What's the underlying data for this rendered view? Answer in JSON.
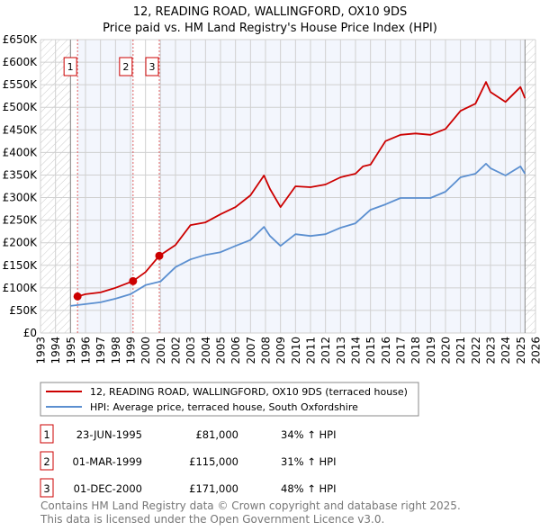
{
  "chart_data": {
    "type": "line",
    "title": "12, READING ROAD, WALLINGFORD, OX10 9DS",
    "subtitle": "Price paid vs. HM Land Registry's House Price Index (HPI)",
    "xlim": [
      1993,
      2026
    ],
    "ylim": [
      0,
      650000
    ],
    "x_ticks": [
      "1993",
      "1994",
      "1995",
      "1996",
      "1997",
      "1998",
      "1999",
      "2000",
      "2001",
      "2002",
      "2003",
      "2004",
      "2005",
      "2006",
      "2007",
      "2008",
      "2009",
      "2010",
      "2011",
      "2012",
      "2013",
      "2014",
      "2015",
      "2016",
      "2017",
      "2018",
      "2019",
      "2020",
      "2021",
      "2022",
      "2023",
      "2024",
      "2025",
      "2026"
    ],
    "y_ticks": [
      {
        "v": 0,
        "label": "£0"
      },
      {
        "v": 50000,
        "label": "£50K"
      },
      {
        "v": 100000,
        "label": "£100K"
      },
      {
        "v": 150000,
        "label": "£150K"
      },
      {
        "v": 200000,
        "label": "£200K"
      },
      {
        "v": 250000,
        "label": "£250K"
      },
      {
        "v": 300000,
        "label": "£300K"
      },
      {
        "v": 350000,
        "label": "£350K"
      },
      {
        "v": 400000,
        "label": "£400K"
      },
      {
        "v": 450000,
        "label": "£450K"
      },
      {
        "v": 500000,
        "label": "£500K"
      },
      {
        "v": 550000,
        "label": "£550K"
      },
      {
        "v": 600000,
        "label": "£600K"
      },
      {
        "v": 650000,
        "label": "£650K"
      }
    ],
    "grid": true,
    "data_range": [
      1995.0,
      2025.3
    ],
    "series": [
      {
        "name": "12, READING ROAD, WALLINGFORD, OX10 9DS (terraced house)",
        "color": "#cc0000",
        "x": [
          1995.47,
          1996,
          1997,
          1998,
          1999.17,
          2000,
          2000.92,
          2002,
          2003,
          2004,
          2005,
          2006,
          2007,
          2007.9,
          2008.3,
          2009,
          2010,
          2011,
          2012,
          2013,
          2014,
          2014.5,
          2015,
          2016,
          2017,
          2018,
          2019,
          2020,
          2021,
          2022,
          2022.7,
          2023,
          2024,
          2025,
          2025.3
        ],
        "y": [
          81000,
          86000,
          90000,
          100000,
          115000,
          135000,
          171000,
          195000,
          239000,
          245000,
          263000,
          279000,
          305000,
          349000,
          319000,
          279000,
          325000,
          323000,
          329000,
          345000,
          353000,
          369000,
          373000,
          425000,
          439000,
          442000,
          439000,
          452000,
          492000,
          508000,
          556000,
          534000,
          512000,
          545000,
          520000
        ]
      },
      {
        "name": "HPI: Average price, terraced house, South Oxfordshire",
        "color": "#5b8fd0",
        "x": [
          1995,
          1996,
          1997,
          1998,
          1999,
          2000,
          2001,
          2002,
          2003,
          2004,
          2005,
          2006,
          2007,
          2007.9,
          2008.3,
          2009,
          2010,
          2011,
          2012,
          2013,
          2014,
          2015,
          2016,
          2017,
          2018,
          2019,
          2020,
          2021,
          2022,
          2022.7,
          2023,
          2024,
          2025,
          2025.3
        ],
        "y": [
          60000,
          64000,
          68000,
          76000,
          86000,
          106000,
          114000,
          146000,
          163000,
          173000,
          179000,
          193000,
          206000,
          235000,
          215000,
          193000,
          219000,
          215000,
          219000,
          233000,
          243000,
          273000,
          285000,
          299000,
          299000,
          299000,
          313000,
          345000,
          353000,
          375000,
          365000,
          349000,
          369000,
          353000
        ]
      }
    ],
    "sales": [
      {
        "n": "1",
        "x": 1995.47,
        "date": "23-JUN-1995",
        "price": "£81,000",
        "value": 81000,
        "hpi": "34% ↑ HPI"
      },
      {
        "n": "2",
        "x": 1999.17,
        "date": "01-MAR-1999",
        "price": "£115,000",
        "value": 115000,
        "hpi": "31% ↑ HPI"
      },
      {
        "n": "3",
        "x": 2000.92,
        "date": "01-DEC-2000",
        "price": "£171,000",
        "value": 171000,
        "hpi": "48% ↑ HPI"
      }
    ]
  },
  "legend": {
    "red": "12, READING ROAD, WALLINGFORD, OX10 9DS (terraced house)",
    "blue": "HPI: Average price, terraced house, South Oxfordshire"
  },
  "footer": {
    "line1": "Contains HM Land Registry data © Crown copyright and database right 2025.",
    "line2": "This data is licensed under the Open Government Licence v3.0."
  }
}
